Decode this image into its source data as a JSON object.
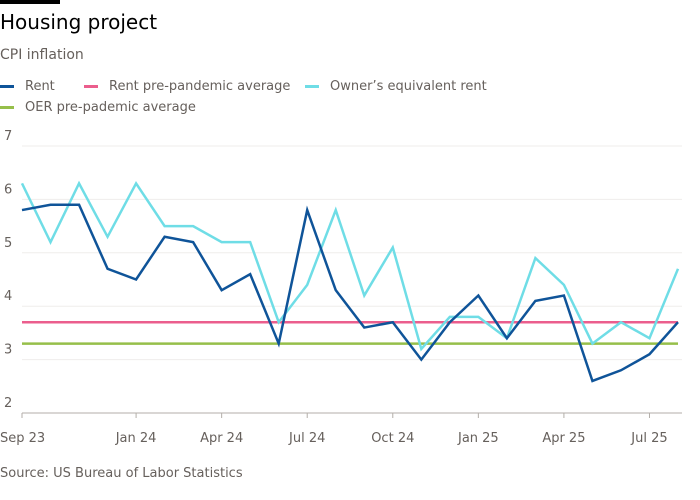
{
  "header": {
    "title": "Housing project",
    "subtitle": "CPI inflation"
  },
  "source": "Source: US Bureau of Labor Statistics",
  "chart_data": {
    "type": "line",
    "title": "Housing project",
    "subtitle": "CPI inflation",
    "x": [
      "Sep 23",
      "Oct 23",
      "Nov 23",
      "Dec 23",
      "Jan 24",
      "Feb 24",
      "Mar 24",
      "Apr 24",
      "May 24",
      "Jun 24",
      "Jul 24",
      "Aug 24",
      "Sep 24",
      "Oct 24",
      "Nov 24",
      "Dec 24",
      "Jan 25",
      "Feb 25",
      "Mar 25",
      "Apr 25",
      "May 25",
      "Jun 25",
      "Jul 25",
      "Aug 25"
    ],
    "x_tick_labels": [
      "Sep 23",
      "Jan 24",
      "Apr 24",
      "Jul 24",
      "Oct 24",
      "Jan 25",
      "Apr 25",
      "Jul 25"
    ],
    "x_tick_index": [
      0,
      4,
      7,
      10,
      13,
      16,
      19,
      22
    ],
    "ylim": [
      2,
      7
    ],
    "y_ticks": [
      2,
      3,
      4,
      5,
      6,
      7
    ],
    "grid": true,
    "legend_placement": "top",
    "series": [
      {
        "name": "Rent",
        "color": "#0f5499",
        "values": [
          5.8,
          5.9,
          5.9,
          4.7,
          4.5,
          5.3,
          5.2,
          4.3,
          4.6,
          3.3,
          5.8,
          4.3,
          3.6,
          3.7,
          3.0,
          3.7,
          4.2,
          3.4,
          4.1,
          4.2,
          2.6,
          2.8,
          3.1,
          3.7
        ]
      },
      {
        "name": "Rent pre-pandemic average",
        "color": "#eb5e8d",
        "constant": 3.7
      },
      {
        "name": "Owner’s equivalent rent",
        "color": "#6fdde6",
        "values": [
          6.3,
          5.2,
          6.3,
          5.3,
          6.3,
          5.5,
          5.5,
          5.2,
          5.2,
          3.7,
          4.4,
          5.8,
          4.2,
          5.1,
          3.2,
          3.8,
          3.8,
          3.4,
          4.9,
          4.4,
          3.3,
          3.7,
          3.4,
          4.7
        ]
      },
      {
        "name": "OER pre-pademic average",
        "color": "#96bf4a",
        "constant": 3.3
      }
    ]
  }
}
